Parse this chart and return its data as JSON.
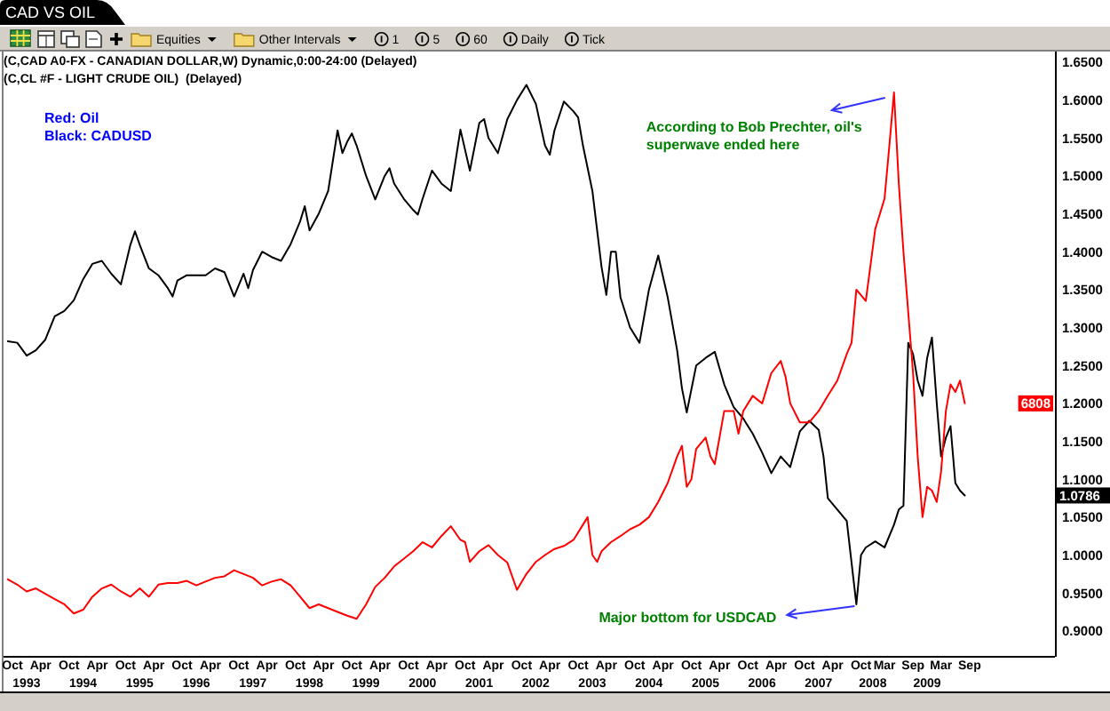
{
  "chart_data": {
    "type": "line",
    "title": "CAD VS OIL",
    "annotations": [
      "(C,CAD A0-FX - CANADIAN DOLLAR,W) Dynamic,0:00-24:00 (Delayed)",
      "(C,CL #F - LIGHT CRUDE OIL)  (Delayed)",
      "Red: Oil",
      "Black: CADUSD",
      "1.0786",
      "6808",
      "1993",
      "1994",
      "1995",
      "1996",
      "1997",
      "1998",
      "1999",
      "2000",
      "2001",
      "2002",
      "2003",
      "2004",
      "2005",
      "2006",
      "2007",
      "2008",
      "2009",
      "Equities",
      "Other Intervals",
      "1",
      "5",
      "60",
      "Daily",
      "Tick",
      {
        "text": "According to Bob Prechter, oil's superwave ended here",
        "x": "2008-05",
        "y": 1.61
      },
      {
        "text": "Major bottom for USDCAD",
        "x": "2007-09",
        "y": 0.935
      }
    ],
    "xlim": [
      "1992-08-16",
      "2011-03-06"
    ],
    "ylim": [
      0.867,
      1.664
    ],
    "xticks": [
      {
        "value": "1992-10",
        "label": "Oct"
      },
      {
        "value": "1993-04",
        "label": "Apr"
      },
      {
        "value": "1993-10",
        "label": "Oct"
      },
      {
        "value": "1994-04",
        "label": "Apr"
      },
      {
        "value": "1994-10",
        "label": "Oct"
      },
      {
        "value": "1995-04",
        "label": "Apr"
      },
      {
        "value": "1995-10",
        "label": "Oct"
      },
      {
        "value": "1996-04",
        "label": "Apr"
      },
      {
        "value": "1996-10",
        "label": "Oct"
      },
      {
        "value": "1997-04",
        "label": "Apr"
      },
      {
        "value": "1997-10",
        "label": "Oct"
      },
      {
        "value": "1998-04",
        "label": "Apr"
      },
      {
        "value": "1998-10",
        "label": "Oct"
      },
      {
        "value": "1999-04",
        "label": "Apr"
      },
      {
        "value": "1999-10",
        "label": "Oct"
      },
      {
        "value": "2000-04",
        "label": "Apr"
      },
      {
        "value": "2000-10",
        "label": "Oct"
      },
      {
        "value": "2001-04",
        "label": "Apr"
      },
      {
        "value": "2001-10",
        "label": "Oct"
      },
      {
        "value": "2002-04",
        "label": "Apr"
      },
      {
        "value": "2002-10",
        "label": "Oct"
      },
      {
        "value": "2003-04",
        "label": "Apr"
      },
      {
        "value": "2003-10",
        "label": "Oct"
      },
      {
        "value": "2004-04",
        "label": "Apr"
      },
      {
        "value": "2004-10",
        "label": "Oct"
      },
      {
        "value": "2005-04",
        "label": "Apr"
      },
      {
        "value": "2005-10",
        "label": "Oct"
      },
      {
        "value": "2006-04",
        "label": "Apr"
      },
      {
        "value": "2006-10",
        "label": "Oct"
      },
      {
        "value": "2007-04",
        "label": "Apr"
      },
      {
        "value": "2007-10",
        "label": "Oct"
      },
      {
        "value": "2008-03",
        "label": "Mar"
      },
      {
        "value": "2008-09",
        "label": "Sep"
      },
      {
        "value": "2009-03",
        "label": "Mar"
      },
      {
        "value": "2009-09",
        "label": "Sep"
      }
    ],
    "yticks": [
      {
        "value": 0.9,
        "label": "0.9000"
      },
      {
        "value": 0.95,
        "label": "0.9500"
      },
      {
        "value": 1.0,
        "label": "1.0000"
      },
      {
        "value": 1.05,
        "label": "1.0500"
      },
      {
        "value": 1.1,
        "label": "1.1000"
      },
      {
        "value": 1.15,
        "label": "1.1500"
      },
      {
        "value": 1.2,
        "label": "1.2000"
      },
      {
        "value": 1.25,
        "label": "1.2500"
      },
      {
        "value": 1.3,
        "label": "1.3000"
      },
      {
        "value": 1.35,
        "label": "1.3500"
      },
      {
        "value": 1.4,
        "label": "1.4000"
      },
      {
        "value": 1.45,
        "label": "1.4500"
      },
      {
        "value": 1.5,
        "label": "1.5000"
      },
      {
        "value": 1.55,
        "label": "1.5500"
      },
      {
        "value": 1.6,
        "label": "1.6000"
      },
      {
        "value": 1.65,
        "label": "1.6500"
      }
    ],
    "series": [
      {
        "color": "#000000",
        "x": [
          "1992-09",
          "1992-11",
          "1993-01",
          "1993-03",
          "1993-05",
          "1993-07",
          "1993-09",
          "1993-11",
          "1994-01",
          "1994-03",
          "1994-05",
          "1994-07",
          "1994-09",
          "1994-11",
          "1994-12",
          "1995-01",
          "1995-03",
          "1995-05",
          "1995-07",
          "1995-08",
          "1995-09",
          "1995-11",
          "1996-01",
          "1996-03",
          "1996-05",
          "1996-07",
          "1996-09",
          "1996-11",
          "1996-12",
          "1997-01",
          "1997-03",
          "1997-05",
          "1997-07",
          "1997-09",
          "1997-11",
          "1997-12",
          "1998-01",
          "1998-03",
          "1998-05",
          "1998-07",
          "1998-08",
          "1998-09",
          "1998-10",
          "1998-11",
          "1999-01",
          "1999-03",
          "1999-05",
          "1999-06",
          "1999-07",
          "1999-09",
          "1999-11",
          "1999-12",
          "2000-01",
          "2000-03",
          "2000-05",
          "2000-07",
          "2000-09",
          "2000-11",
          "2001-01",
          "2001-02",
          "2001-03",
          "2001-05",
          "2001-07",
          "2001-09",
          "2001-11",
          "2002-01",
          "2002-03",
          "2002-04",
          "2002-05",
          "2002-07",
          "2002-09",
          "2002-10",
          "2002-11",
          "2003-01",
          "2003-03",
          "2003-04",
          "2003-05",
          "2003-06",
          "2003-07",
          "2003-09",
          "2003-11",
          "2004-01",
          "2004-03",
          "2004-05",
          "2004-07",
          "2004-08",
          "2004-09",
          "2004-11",
          "2005-01",
          "2005-03",
          "2005-05",
          "2005-07",
          "2005-09",
          "2005-11",
          "2006-01",
          "2006-03",
          "2006-05",
          "2006-07",
          "2006-09",
          "2006-11",
          "2007-01",
          "2007-02",
          "2007-03",
          "2007-05",
          "2007-07",
          "2007-08",
          "2007-09",
          "2007-10",
          "2007-11",
          "2008-01",
          "2008-03",
          "2008-05",
          "2008-06",
          "2008-07",
          "2008-08",
          "2008-09",
          "2008-10",
          "2008-11",
          "2008-12",
          "2009-01",
          "2009-02",
          "2009-03",
          "2009-04",
          "2009-05",
          "2009-06",
          "2009-07",
          "2009-08"
        ],
        "values": [
          1.282,
          1.28,
          1.263,
          1.27,
          1.284,
          1.315,
          1.322,
          1.336,
          1.364,
          1.384,
          1.388,
          1.371,
          1.357,
          1.409,
          1.427,
          1.409,
          1.378,
          1.369,
          1.352,
          1.341,
          1.362,
          1.369,
          1.369,
          1.369,
          1.378,
          1.373,
          1.341,
          1.371,
          1.352,
          1.376,
          1.4,
          1.393,
          1.388,
          1.41,
          1.44,
          1.46,
          1.428,
          1.45,
          1.48,
          1.56,
          1.53,
          1.545,
          1.556,
          1.54,
          1.5,
          1.469,
          1.5,
          1.51,
          1.49,
          1.47,
          1.455,
          1.449,
          1.47,
          1.507,
          1.49,
          1.48,
          1.561,
          1.507,
          1.57,
          1.575,
          1.55,
          1.53,
          1.575,
          1.6,
          1.62,
          1.595,
          1.54,
          1.528,
          1.56,
          1.598,
          1.585,
          1.577,
          1.54,
          1.48,
          1.38,
          1.343,
          1.4,
          1.4,
          1.34,
          1.3,
          1.28,
          1.35,
          1.395,
          1.34,
          1.27,
          1.22,
          1.188,
          1.25,
          1.26,
          1.268,
          1.225,
          1.195,
          1.18,
          1.16,
          1.135,
          1.108,
          1.13,
          1.116,
          1.163,
          1.177,
          1.165,
          1.13,
          1.075,
          1.06,
          1.045,
          0.99,
          0.935,
          1.0,
          1.01,
          1.018,
          1.01,
          1.04,
          1.06,
          1.065,
          1.28,
          1.265,
          1.23,
          1.21,
          1.26,
          1.287,
          1.2,
          1.13,
          1.155,
          1.17,
          1.095,
          1.085,
          1.0786
        ]
      },
      {
        "color": "#ff0000",
        "x": [
          "1992-09",
          "1992-11",
          "1993-01",
          "1993-03",
          "1993-05",
          "1993-07",
          "1993-09",
          "1993-11",
          "1994-01",
          "1994-03",
          "1994-05",
          "1994-07",
          "1994-09",
          "1994-11",
          "1995-01",
          "1995-03",
          "1995-05",
          "1995-07",
          "1995-09",
          "1995-11",
          "1996-01",
          "1996-03",
          "1996-05",
          "1996-07",
          "1996-09",
          "1996-11",
          "1997-01",
          "1997-03",
          "1997-05",
          "1997-07",
          "1997-09",
          "1997-11",
          "1998-01",
          "1998-03",
          "1998-05",
          "1998-07",
          "1998-09",
          "1998-11",
          "1999-01",
          "1999-03",
          "1999-05",
          "1999-07",
          "1999-09",
          "1999-11",
          "2000-01",
          "2000-03",
          "2000-05",
          "2000-07",
          "2000-09",
          "2000-10",
          "2000-11",
          "2001-01",
          "2001-03",
          "2001-05",
          "2001-07",
          "2001-09",
          "2001-11",
          "2002-01",
          "2002-03",
          "2002-05",
          "2002-07",
          "2002-09",
          "2002-11",
          "2002-12",
          "2003-01",
          "2003-02",
          "2003-03",
          "2003-05",
          "2003-07",
          "2003-09",
          "2003-11",
          "2004-01",
          "2004-03",
          "2004-05",
          "2004-07",
          "2004-08",
          "2004-09",
          "2004-10",
          "2004-11",
          "2005-01",
          "2005-02",
          "2005-03",
          "2005-05",
          "2005-07",
          "2005-08",
          "2005-09",
          "2005-11",
          "2006-01",
          "2006-03",
          "2006-05",
          "2006-06",
          "2006-07",
          "2006-09",
          "2006-11",
          "2007-01",
          "2007-03",
          "2007-05",
          "2007-07",
          "2007-08",
          "2007-09",
          "2007-11",
          "2008-01",
          "2008-03",
          "2008-04",
          "2008-05",
          "2008-06",
          "2008-07",
          "2008-08",
          "2008-09",
          "2008-10",
          "2008-11",
          "2008-12",
          "2009-01",
          "2009-02",
          "2009-03",
          "2009-04",
          "2009-05",
          "2009-06",
          "2009-07",
          "2009-08"
        ],
        "values": [
          0.968,
          0.961,
          0.952,
          0.956,
          0.949,
          0.942,
          0.935,
          0.923,
          0.928,
          0.945,
          0.956,
          0.961,
          0.952,
          0.945,
          0.956,
          0.945,
          0.961,
          0.963,
          0.963,
          0.966,
          0.96,
          0.965,
          0.97,
          0.972,
          0.98,
          0.975,
          0.97,
          0.96,
          0.965,
          0.968,
          0.96,
          0.945,
          0.93,
          0.935,
          0.93,
          0.925,
          0.92,
          0.916,
          0.935,
          0.958,
          0.97,
          0.985,
          0.995,
          1.005,
          1.017,
          1.01,
          1.025,
          1.038,
          1.02,
          1.017,
          0.991,
          1.005,
          1.013,
          1.0,
          0.99,
          0.954,
          0.975,
          0.991,
          1.0,
          1.008,
          1.012,
          1.02,
          1.04,
          1.05,
          1.0,
          0.991,
          1.005,
          1.017,
          1.025,
          1.034,
          1.04,
          1.05,
          1.07,
          1.095,
          1.13,
          1.144,
          1.09,
          1.1,
          1.14,
          1.155,
          1.13,
          1.12,
          1.19,
          1.19,
          1.16,
          1.19,
          1.21,
          1.2,
          1.24,
          1.256,
          1.235,
          1.2,
          1.175,
          1.175,
          1.19,
          1.21,
          1.23,
          1.265,
          1.28,
          1.35,
          1.335,
          1.43,
          1.47,
          1.54,
          1.61,
          1.49,
          1.4,
          1.32,
          1.24,
          1.13,
          1.05,
          1.09,
          1.085,
          1.07,
          1.11,
          1.19,
          1.225,
          1.215,
          1.23,
          1.2
        ]
      }
    ]
  }
}
